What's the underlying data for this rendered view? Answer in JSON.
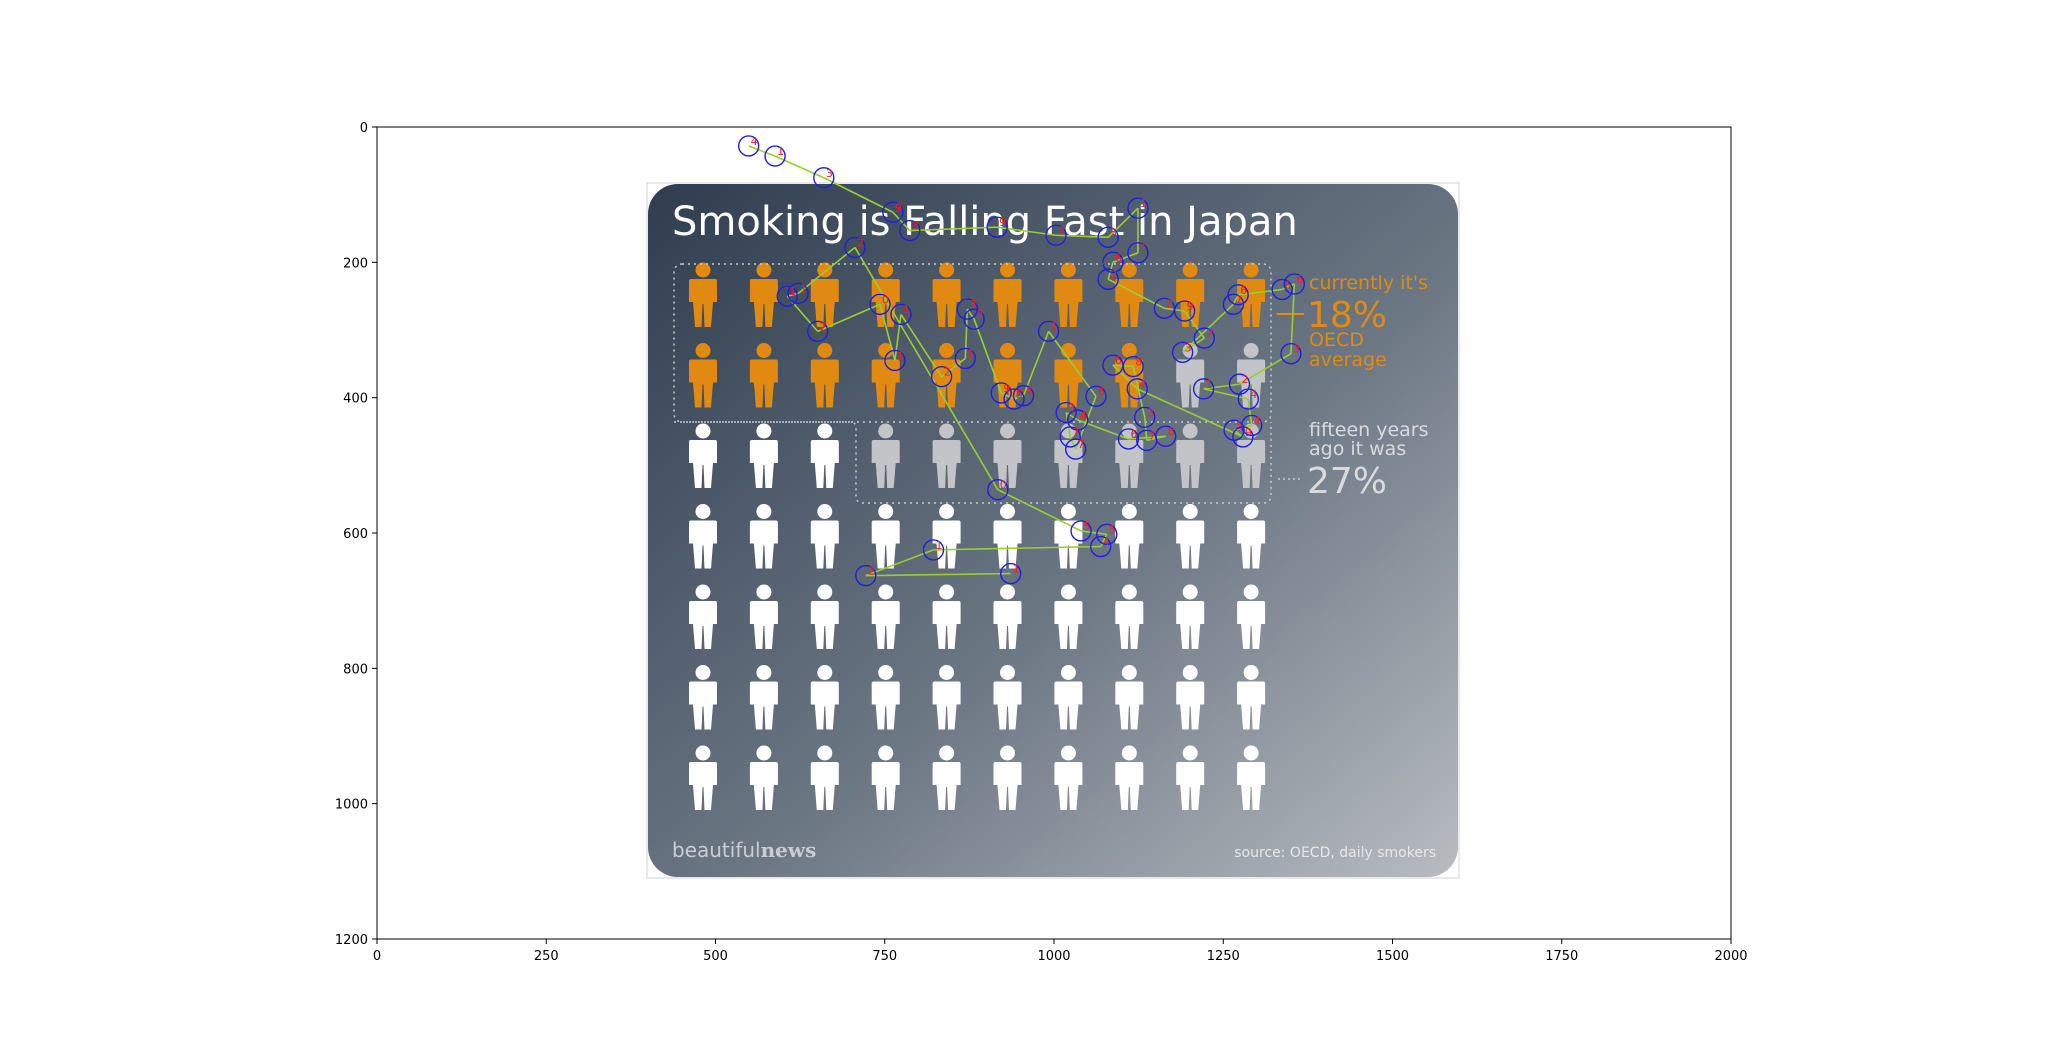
{
  "chart_data": {
    "type": "scatter",
    "xlim": [
      0,
      2000
    ],
    "ylim": [
      1200,
      0
    ],
    "x_ticks": [
      0,
      250,
      500,
      750,
      1000,
      1250,
      1500,
      1750,
      2000
    ],
    "y_ticks": [
      0,
      200,
      400,
      600,
      800,
      1000,
      1200
    ],
    "grid": false,
    "series": [
      {
        "values": [
          {
            "x": 549,
            "y": 28,
            "label": "4"
          },
          {
            "x": 588,
            "y": 43,
            "label": "1"
          },
          {
            "x": 660,
            "y": 75,
            "label": "3"
          },
          {
            "x": 762,
            "y": 126,
            "label": "9"
          },
          {
            "x": 787,
            "y": 153,
            "label": "3"
          },
          {
            "x": 916,
            "y": 148,
            "label": "9"
          },
          {
            "x": 1003,
            "y": 160,
            "label": "3"
          },
          {
            "x": 1080,
            "y": 163,
            "label": "5"
          },
          {
            "x": 1124,
            "y": 120,
            "label": "1"
          },
          {
            "x": 1124,
            "y": 186,
            "label": "1"
          },
          {
            "x": 1087,
            "y": 200,
            "label": "6"
          },
          {
            "x": 1080,
            "y": 225,
            "label": "2"
          },
          {
            "x": 1163,
            "y": 268,
            "label": "2"
          },
          {
            "x": 1193,
            "y": 272,
            "label": "9"
          },
          {
            "x": 1222,
            "y": 312,
            "label": "7"
          },
          {
            "x": 1190,
            "y": 333,
            "label": "3"
          },
          {
            "x": 1265,
            "y": 262,
            "label": "7"
          },
          {
            "x": 1272,
            "y": 248,
            "label": "6"
          },
          {
            "x": 1337,
            "y": 240,
            "label": "6"
          },
          {
            "x": 1355,
            "y": 232,
            "label": "6"
          },
          {
            "x": 1350,
            "y": 335,
            "label": "3"
          },
          {
            "x": 1274,
            "y": 380,
            "label": "2"
          },
          {
            "x": 1221,
            "y": 387,
            "label": "1"
          },
          {
            "x": 1287,
            "y": 402,
            "label": "4"
          },
          {
            "x": 1292,
            "y": 441,
            "label": "4"
          },
          {
            "x": 1266,
            "y": 448,
            "label": "5"
          },
          {
            "x": 1279,
            "y": 458,
            "label": "9"
          },
          {
            "x": 1123,
            "y": 387,
            "label": "4"
          },
          {
            "x": 1087,
            "y": 352,
            "label": "6"
          },
          {
            "x": 1117,
            "y": 354,
            "label": "8"
          },
          {
            "x": 1134,
            "y": 429,
            "label": "3"
          },
          {
            "x": 1137,
            "y": 463,
            "label": "7"
          },
          {
            "x": 1165,
            "y": 457,
            "label": "8"
          },
          {
            "x": 1110,
            "y": 461,
            "label": "6"
          },
          {
            "x": 1035,
            "y": 433,
            "label": "4"
          },
          {
            "x": 1018,
            "y": 422,
            "label": "3"
          },
          {
            "x": 1024,
            "y": 458,
            "label": "7"
          },
          {
            "x": 1032,
            "y": 476,
            "label": "7"
          },
          {
            "x": 1062,
            "y": 398,
            "label": "6"
          },
          {
            "x": 992,
            "y": 302,
            "label": "1"
          },
          {
            "x": 955,
            "y": 397,
            "label": "4"
          },
          {
            "x": 941,
            "y": 402,
            "label": "5"
          },
          {
            "x": 922,
            "y": 393,
            "label": "9"
          },
          {
            "x": 882,
            "y": 284,
            "label": "3"
          },
          {
            "x": 872,
            "y": 269,
            "label": "3"
          },
          {
            "x": 869,
            "y": 342,
            "label": "1"
          },
          {
            "x": 834,
            "y": 369,
            "label": "2"
          },
          {
            "x": 774,
            "y": 277,
            "label": "1"
          },
          {
            "x": 765,
            "y": 345,
            "label": "1"
          },
          {
            "x": 743,
            "y": 262,
            "label": "0"
          },
          {
            "x": 651,
            "y": 302,
            "label": "2"
          },
          {
            "x": 606,
            "y": 250,
            "label": "1"
          },
          {
            "x": 622,
            "y": 246,
            "label": "1"
          },
          {
            "x": 706,
            "y": 178,
            "label": "2"
          },
          {
            "x": 917,
            "y": 536,
            "label": "0"
          },
          {
            "x": 1040,
            "y": 597,
            "label": "5"
          },
          {
            "x": 1078,
            "y": 602,
            "label": "5"
          },
          {
            "x": 1069,
            "y": 620,
            "label": "4"
          },
          {
            "x": 822,
            "y": 625,
            "label": "1"
          },
          {
            "x": 722,
            "y": 663,
            "label": "2"
          },
          {
            "x": 936,
            "y": 660,
            "label": "1"
          }
        ]
      }
    ],
    "path_order": [
      0,
      1,
      2,
      3,
      4,
      5,
      6,
      7,
      8,
      9,
      10,
      11,
      12,
      13,
      14,
      15,
      16,
      17,
      18,
      19,
      20,
      21,
      22,
      23,
      24,
      25,
      26,
      27,
      28,
      29,
      30,
      31,
      32,
      33,
      34,
      35,
      36,
      37,
      38,
      39,
      40,
      41,
      42,
      43,
      44,
      45,
      46,
      47,
      48,
      49,
      50,
      51,
      52,
      53,
      54,
      55,
      56,
      57,
      58,
      59,
      60
    ],
    "colors": {
      "marker": "#1f1fdc",
      "label": "#ff1a1a",
      "path": "#9acd32",
      "axis": "#000000"
    }
  },
  "infographic": {
    "title": "Smoking is Falling Fast in Japan",
    "current_caption": "currently it's",
    "current_value": "18%",
    "oecd_line1": "OECD",
    "oecd_line2": "average",
    "past_caption_line1": "fifteen years",
    "past_caption_line2": "ago it was",
    "past_value": "27%",
    "brand_light": "beautiful",
    "brand_bold": "news",
    "source": "source: OECD, daily smokers",
    "figure_grid": {
      "columns": 10,
      "rows": 7,
      "orange_count": 18,
      "grey_count": 9
    },
    "colors": {
      "orange": "#e08a12",
      "grey": "#c2c4c7",
      "white": "#ffffff",
      "bg_dark": "#2f3d4f",
      "bg_light": "#b8bcc1"
    }
  }
}
